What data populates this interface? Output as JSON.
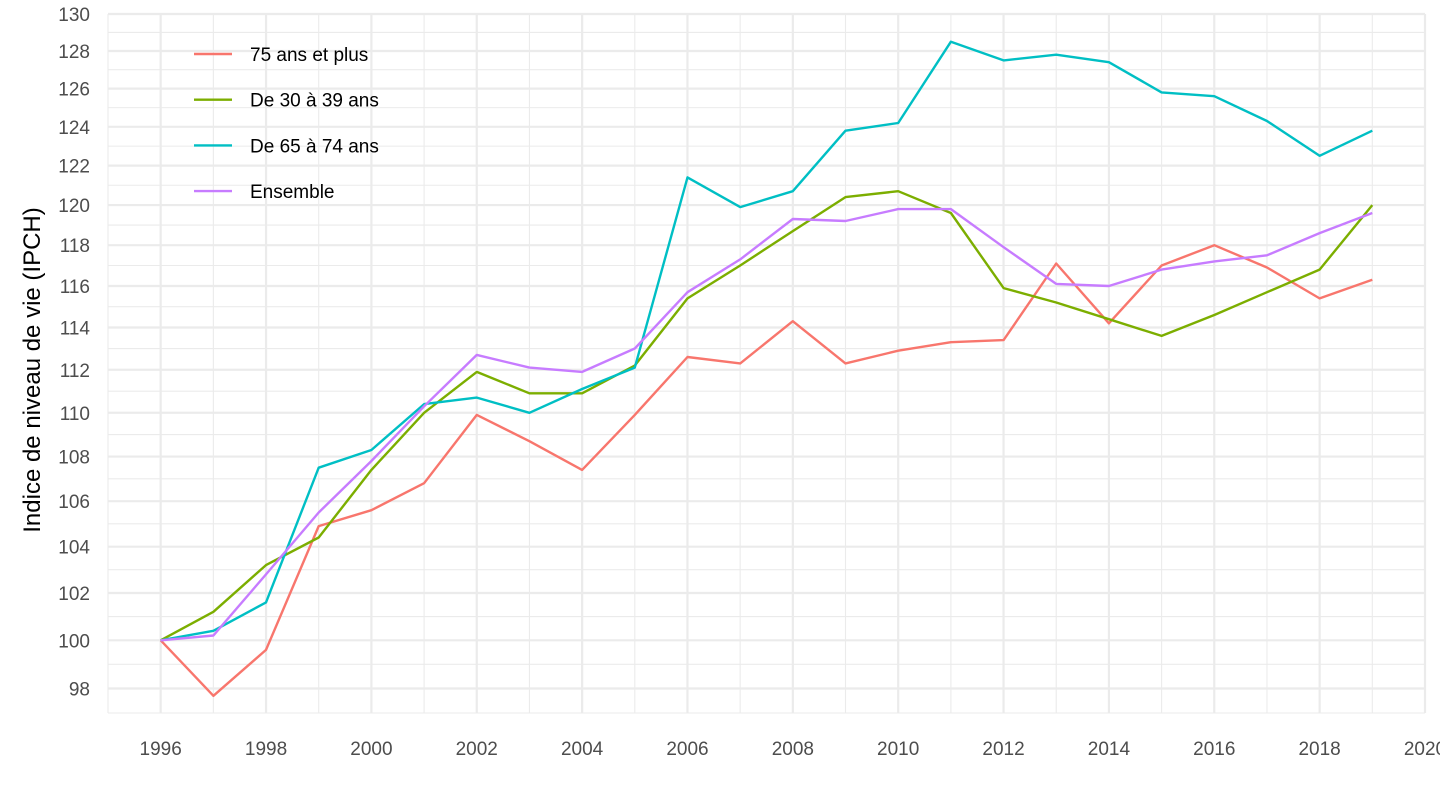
{
  "chart_data": {
    "type": "line",
    "title": "",
    "xlabel": "",
    "ylabel": "Indice de niveau de vie (IPCH)",
    "xlim": [
      1995,
      2020
    ],
    "ylim": [
      97,
      130
    ],
    "log_scale_y": true,
    "grid": true,
    "legend_position": "top-left",
    "x_ticks": [
      1996,
      1998,
      2000,
      2002,
      2004,
      2006,
      2008,
      2010,
      2012,
      2014,
      2016,
      2018,
      2020
    ],
    "y_ticks": [
      98,
      100,
      102,
      104,
      106,
      108,
      110,
      112,
      114,
      116,
      118,
      120,
      122,
      124,
      126,
      128,
      130
    ],
    "x": [
      1996,
      1997,
      1998,
      1999,
      2000,
      2001,
      2002,
      2003,
      2004,
      2005,
      2006,
      2007,
      2008,
      2009,
      2010,
      2011,
      2012,
      2013,
      2014,
      2015,
      2016,
      2017,
      2018,
      2019
    ],
    "series": [
      {
        "name": "75 ans et plus",
        "color": "#F8766D",
        "values": [
          100.0,
          97.7,
          99.6,
          104.9,
          105.6,
          106.8,
          109.9,
          108.7,
          107.4,
          109.9,
          112.6,
          112.3,
          114.3,
          112.3,
          112.9,
          113.3,
          113.4,
          117.1,
          114.2,
          117.0,
          118.0,
          116.9,
          115.4,
          116.3
        ]
      },
      {
        "name": "De 30 à 39 ans",
        "color": "#7CAE00",
        "values": [
          100.0,
          101.2,
          103.2,
          104.4,
          107.4,
          110.0,
          111.9,
          110.9,
          110.9,
          112.2,
          115.4,
          117.0,
          118.7,
          120.4,
          120.7,
          119.6,
          115.9,
          115.2,
          114.4,
          113.6,
          114.6,
          115.7,
          116.8,
          120.0
        ]
      },
      {
        "name": "De 65 à 74 ans",
        "color": "#00BFC4",
        "values": [
          100.0,
          100.4,
          101.6,
          107.5,
          108.3,
          110.4,
          110.7,
          110.0,
          111.1,
          112.1,
          121.4,
          119.9,
          120.7,
          123.8,
          124.2,
          128.5,
          127.5,
          127.8,
          127.4,
          125.8,
          125.6,
          124.3,
          122.5,
          123.8
        ]
      },
      {
        "name": "Ensemble",
        "color": "#C77CFF",
        "values": [
          100.0,
          100.2,
          102.8,
          105.5,
          107.8,
          110.3,
          112.7,
          112.1,
          111.9,
          113.0,
          115.7,
          117.3,
          119.3,
          119.2,
          119.8,
          119.8,
          117.9,
          116.1,
          116.0,
          116.8,
          117.2,
          117.5,
          118.6,
          119.6
        ]
      }
    ]
  }
}
